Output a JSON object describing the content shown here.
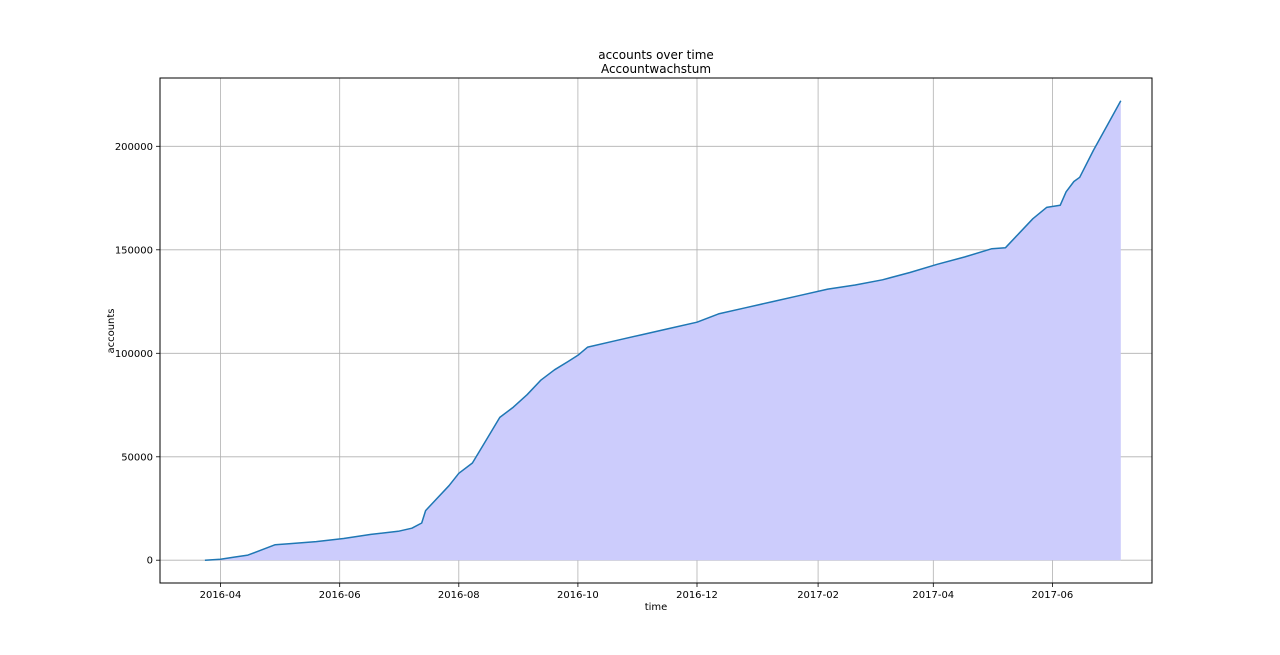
{
  "chart_data": {
    "type": "area",
    "title": "accounts over time",
    "subtitle": "Accountwachstum",
    "xlabel": "time",
    "ylabel": "accounts",
    "grid": true,
    "x_ticks": [
      "2016-04",
      "2016-06",
      "2016-08",
      "2016-10",
      "2016-12",
      "2017-02",
      "2017-04",
      "2017-06"
    ],
    "y_ticks": [
      0,
      50000,
      100000,
      150000,
      200000
    ],
    "y_tick_labels": [
      "0",
      "50000",
      "100000",
      "150000",
      "200000"
    ],
    "xlim": [
      "2016-03-01",
      "2017-07-22"
    ],
    "ylim": [
      -11000,
      233000
    ],
    "colors": {
      "line": "#1f77b4",
      "fill": "#ccccfc",
      "grid": "#b0b0b0",
      "axes": "#000000"
    },
    "series": [
      {
        "x": [
          "2016-03-24",
          "2016-04-01",
          "2016-04-08",
          "2016-04-15",
          "2016-04-22",
          "2016-04-29",
          "2016-05-06",
          "2016-05-20",
          "2016-06-03",
          "2016-06-17",
          "2016-07-01",
          "2016-07-08",
          "2016-07-13",
          "2016-07-15",
          "2016-07-20",
          "2016-07-27",
          "2016-08-01",
          "2016-08-08",
          "2016-08-15",
          "2016-08-22",
          "2016-08-29",
          "2016-09-05",
          "2016-09-12",
          "2016-09-19",
          "2016-09-26",
          "2016-10-01",
          "2016-10-06",
          "2016-10-20",
          "2016-11-03",
          "2016-11-17",
          "2016-12-01",
          "2016-12-12",
          "2016-12-26",
          "2017-01-09",
          "2017-01-23",
          "2017-02-06",
          "2017-02-20",
          "2017-03-06",
          "2017-03-20",
          "2017-04-03",
          "2017-04-17",
          "2017-05-01",
          "2017-05-08",
          "2017-05-15",
          "2017-05-22",
          "2017-05-29",
          "2017-06-05",
          "2017-06-08",
          "2017-06-12",
          "2017-06-15",
          "2017-06-22",
          "2017-06-29",
          "2017-07-06"
        ],
        "values": [
          0,
          500,
          1500,
          2500,
          5000,
          7500,
          8000,
          9000,
          10500,
          12500,
          14000,
          15500,
          18000,
          24000,
          29000,
          36000,
          42000,
          47000,
          58000,
          69000,
          74000,
          80000,
          87000,
          92000,
          96000,
          99000,
          103000,
          106000,
          109000,
          112000,
          115000,
          119000,
          122000,
          125000,
          128000,
          131000,
          133000,
          135500,
          139000,
          143000,
          146500,
          150500,
          151000,
          158000,
          165000,
          170500,
          171500,
          178000,
          183000,
          185000,
          198000,
          210000,
          222000
        ]
      }
    ]
  }
}
